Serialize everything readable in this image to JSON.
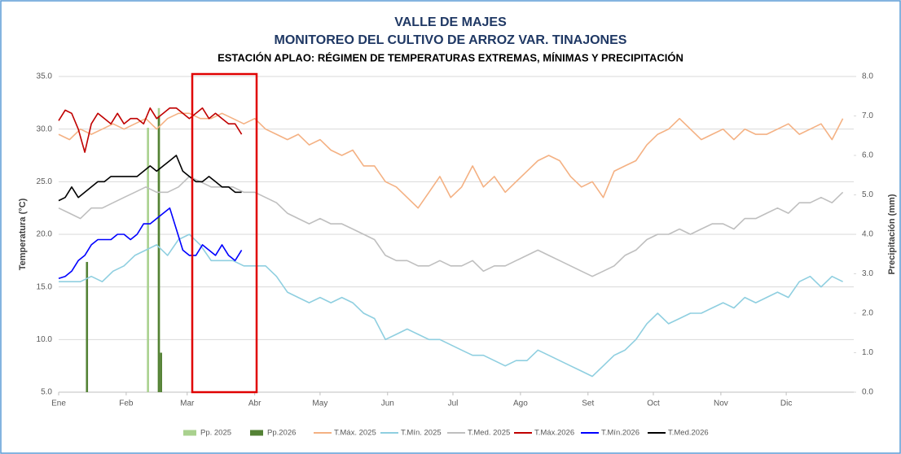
{
  "chart_data": {
    "type": "line",
    "title": "VALLE DE MAJES",
    "subtitle": "MONITOREO DEL CULTIVO DE ARROZ VAR. TINAJONES",
    "subtitle2": "ESTACIÓN APLAO: RÉGIMEN DE TEMPERATURAS EXTREMAS, MÍNIMAS Y PRECIPITACIÓN",
    "ylabel": "Temperatura (°C)",
    "y2label": "Precipitación (mm)",
    "xlim": [
      1,
      366
    ],
    "xticks": [
      {
        "value": 1,
        "label": "Ene"
      },
      {
        "value": 32,
        "label": "Feb"
      },
      {
        "value": 60,
        "label": "Mar"
      },
      {
        "value": 91,
        "label": "Abr"
      },
      {
        "value": 121,
        "label": "May"
      },
      {
        "value": 152,
        "label": "Jun"
      },
      {
        "value": 182,
        "label": "Jul"
      },
      {
        "value": 213,
        "label": "Ago"
      },
      {
        "value": 244,
        "label": "Set"
      },
      {
        "value": 274,
        "label": "Oct"
      },
      {
        "value": 305,
        "label": "Nov"
      },
      {
        "value": 335,
        "label": "Dic"
      }
    ],
    "ylim": [
      5,
      35
    ],
    "yticks": [
      {
        "value": 5,
        "label": "5.0"
      },
      {
        "value": 10,
        "label": "10.0"
      },
      {
        "value": 15,
        "label": "15.0"
      },
      {
        "value": 20,
        "label": "20.0"
      },
      {
        "value": 25,
        "label": "25.0"
      },
      {
        "value": 30,
        "label": "30.0"
      },
      {
        "value": 35,
        "label": "35.0"
      }
    ],
    "y2lim": [
      0,
      8
    ],
    "y2ticks": [
      {
        "value": 0,
        "label": "0.0"
      },
      {
        "value": 1,
        "label": "1.0"
      },
      {
        "value": 2,
        "label": "2.0"
      },
      {
        "value": 3,
        "label": "3.0"
      },
      {
        "value": 4,
        "label": "4.0"
      },
      {
        "value": 5,
        "label": "5.0"
      },
      {
        "value": 6,
        "label": "6.0"
      },
      {
        "value": 7,
        "label": "7.0"
      },
      {
        "value": 8,
        "label": "8.0"
      }
    ],
    "grid": true,
    "legend": "bottom",
    "series": [
      {
        "name": "Pp. 2025",
        "type": "bar",
        "axis": "y2",
        "color": "#a9d18e",
        "x": [
          42,
          47
        ],
        "values": [
          6.7,
          7.2
        ]
      },
      {
        "name": "Pp.2026",
        "type": "bar",
        "axis": "y2",
        "color": "#548235",
        "x": [
          14,
          47,
          48
        ],
        "values": [
          3.3,
          7.0,
          1.0
        ]
      },
      {
        "name": "T.Máx. 2025",
        "type": "line",
        "color": "#f4b183",
        "x": [
          1,
          6,
          11,
          16,
          21,
          26,
          31,
          36,
          41,
          46,
          51,
          56,
          61,
          66,
          71,
          76,
          81,
          86,
          91,
          96,
          101,
          106,
          111,
          116,
          121,
          126,
          131,
          136,
          141,
          146,
          151,
          156,
          161,
          166,
          171,
          176,
          181,
          186,
          191,
          196,
          201,
          206,
          211,
          216,
          221,
          226,
          231,
          236,
          241,
          246,
          251,
          256,
          261,
          266,
          271,
          276,
          281,
          286,
          291,
          296,
          301,
          306,
          311,
          316,
          321,
          326,
          331,
          336,
          341,
          346,
          351,
          356,
          361
        ],
        "values": [
          29.5,
          29,
          30,
          29.5,
          30,
          30.5,
          30,
          30.5,
          31,
          30,
          31,
          31.5,
          31.5,
          31,
          31,
          31.5,
          31,
          30.5,
          31,
          30,
          29.5,
          29,
          29.5,
          28.5,
          29,
          28,
          27.5,
          28,
          26.5,
          26.5,
          25,
          24.5,
          23.5,
          22.5,
          24,
          25.5,
          23.5,
          24.5,
          26.5,
          24.5,
          25.5,
          24,
          25,
          26,
          27,
          27.5,
          27,
          25.5,
          24.5,
          25,
          23.5,
          26,
          26.5,
          27,
          28.5,
          29.5,
          30,
          31,
          30,
          29,
          29.5,
          30,
          29,
          30,
          29.5,
          29.5,
          30,
          30.5,
          29.5,
          30,
          30.5,
          29,
          31
        ]
      },
      {
        "name": "T.Mín. 2025",
        "type": "line",
        "color": "#8fcfe0",
        "x": [
          1,
          6,
          11,
          16,
          21,
          26,
          31,
          36,
          41,
          46,
          51,
          56,
          61,
          66,
          71,
          76,
          81,
          86,
          91,
          96,
          101,
          106,
          111,
          116,
          121,
          126,
          131,
          136,
          141,
          146,
          151,
          156,
          161,
          166,
          171,
          176,
          181,
          186,
          191,
          196,
          201,
          206,
          211,
          216,
          221,
          226,
          231,
          236,
          241,
          246,
          251,
          256,
          261,
          266,
          271,
          276,
          281,
          286,
          291,
          296,
          301,
          306,
          311,
          316,
          321,
          326,
          331,
          336,
          341,
          346,
          351,
          356,
          361
        ],
        "values": [
          15.5,
          15.5,
          15.5,
          16,
          15.5,
          16.5,
          17,
          18,
          18.5,
          19,
          18,
          19.5,
          20,
          19,
          17.5,
          17.5,
          17.5,
          17,
          17,
          17,
          16,
          14.5,
          14,
          13.5,
          14,
          13.5,
          14,
          13.5,
          12.5,
          12,
          10,
          10.5,
          11,
          10.5,
          10,
          10,
          9.5,
          9,
          8.5,
          8.5,
          8,
          7.5,
          8,
          8,
          9,
          8.5,
          8,
          7.5,
          7,
          6.5,
          7.5,
          8.5,
          9,
          10,
          11.5,
          12.5,
          11.5,
          12,
          12.5,
          12.5,
          13,
          13.5,
          13,
          14,
          13.5,
          14,
          14.5,
          14,
          15.5,
          16,
          15,
          16,
          15.5
        ]
      },
      {
        "name": "T.Med. 2025",
        "type": "line",
        "color": "#bfbfbf",
        "x": [
          1,
          6,
          11,
          16,
          21,
          26,
          31,
          36,
          41,
          46,
          51,
          56,
          61,
          66,
          71,
          76,
          81,
          86,
          91,
          96,
          101,
          106,
          111,
          116,
          121,
          126,
          131,
          136,
          141,
          146,
          151,
          156,
          161,
          166,
          171,
          176,
          181,
          186,
          191,
          196,
          201,
          206,
          211,
          216,
          221,
          226,
          231,
          236,
          241,
          246,
          251,
          256,
          261,
          266,
          271,
          276,
          281,
          286,
          291,
          296,
          301,
          306,
          311,
          316,
          321,
          326,
          331,
          336,
          341,
          346,
          351,
          356,
          361
        ],
        "values": [
          22.5,
          22,
          21.5,
          22.5,
          22.5,
          23,
          23.5,
          24,
          24.5,
          24,
          24,
          24.5,
          25.5,
          25,
          24.5,
          24.5,
          24.5,
          24,
          24,
          23.5,
          23,
          22,
          21.5,
          21,
          21.5,
          21,
          21,
          20.5,
          20,
          19.5,
          18,
          17.5,
          17.5,
          17,
          17,
          17.5,
          17,
          17,
          17.5,
          16.5,
          17,
          17,
          17.5,
          18,
          18.5,
          18,
          17.5,
          17,
          16.5,
          16,
          16.5,
          17,
          18,
          18.5,
          19.5,
          20,
          20,
          20.5,
          20,
          20.5,
          21,
          21,
          20.5,
          21.5,
          21.5,
          22,
          22.5,
          22,
          23,
          23,
          23.5,
          23,
          24
        ]
      },
      {
        "name": "T.Máx.2026",
        "type": "line",
        "color": "#c00000",
        "x": [
          1,
          4,
          7,
          10,
          13,
          16,
          19,
          22,
          25,
          28,
          31,
          34,
          37,
          40,
          43,
          46,
          49,
          52,
          55,
          58,
          61,
          64,
          67,
          70,
          73,
          76,
          79,
          82,
          85
        ],
        "values": [
          30.8,
          31.8,
          31.5,
          30,
          27.8,
          30.5,
          31.5,
          31,
          30.5,
          31.5,
          30.5,
          31,
          31,
          30.5,
          32,
          31,
          31.5,
          32,
          32,
          31.5,
          31,
          31.5,
          32,
          31,
          31.5,
          31,
          30.5,
          30.5,
          29.5
        ]
      },
      {
        "name": "T.Mín.2026",
        "type": "line",
        "color": "#0000ff",
        "x": [
          1,
          4,
          7,
          10,
          13,
          16,
          19,
          22,
          25,
          28,
          31,
          34,
          37,
          40,
          43,
          46,
          49,
          52,
          55,
          58,
          61,
          64,
          67,
          70,
          73,
          76,
          79,
          82,
          85
        ],
        "values": [
          15.8,
          16,
          16.5,
          17.5,
          18,
          19,
          19.5,
          19.5,
          19.5,
          20,
          20,
          19.5,
          20,
          21,
          21,
          21.5,
          22,
          22.5,
          20.5,
          18.5,
          18,
          18,
          19,
          18.5,
          18,
          19,
          18,
          17.5,
          18.5
        ]
      },
      {
        "name": "T.Med.2026",
        "type": "line",
        "color": "#000000",
        "x": [
          1,
          4,
          7,
          10,
          13,
          16,
          19,
          22,
          25,
          28,
          31,
          34,
          37,
          40,
          43,
          46,
          49,
          52,
          55,
          58,
          61,
          64,
          67,
          70,
          73,
          76,
          79,
          82,
          85
        ],
        "values": [
          23.2,
          23.5,
          24.5,
          23.5,
          24,
          24.5,
          25,
          25,
          25.5,
          25.5,
          25.5,
          25.5,
          25.5,
          26,
          26.5,
          26,
          26.5,
          27,
          27.5,
          26,
          25.5,
          25,
          25,
          25.5,
          25,
          24.5,
          24.5,
          24,
          24
        ]
      }
    ]
  }
}
